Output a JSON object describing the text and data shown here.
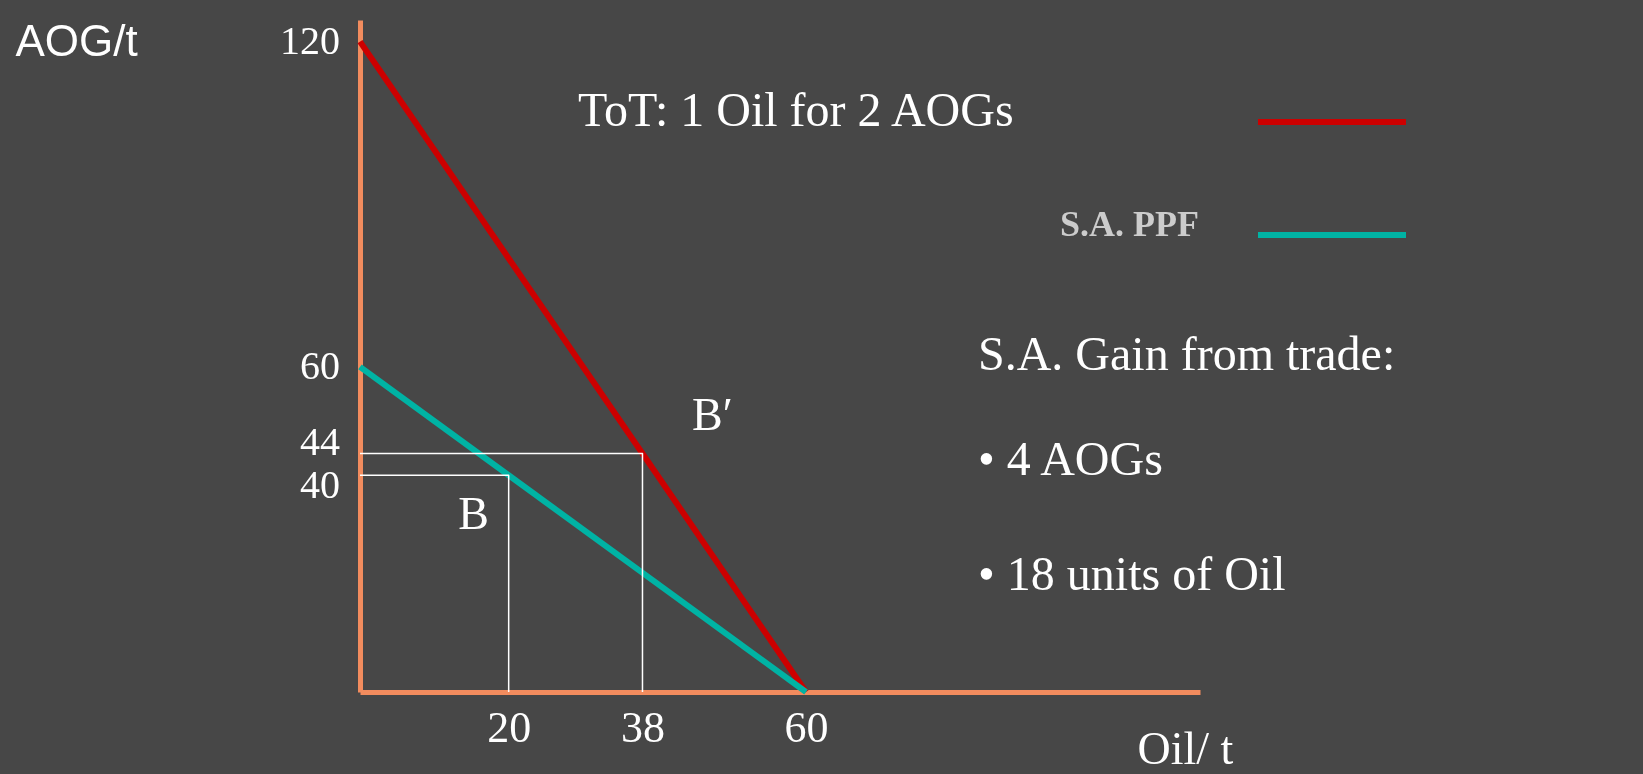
{
  "chart_data": {
    "type": "line",
    "xlabel": "Oil/ t",
    "ylabel": "AOG/t",
    "xlim": [
      0,
      113
    ],
    "ylim": [
      0,
      124
    ],
    "xticks": [
      20,
      38,
      60
    ],
    "yticks": [
      40,
      44,
      60,
      120
    ],
    "grid": false,
    "legend": "top right",
    "marker": "none",
    "line_style": "solid",
    "series": [
      {
        "name": "ToT: 1 Oil for 2 AOGs",
        "color": "#cc0000",
        "x": [
          0,
          60
        ],
        "values": [
          120,
          0
        ]
      },
      {
        "name": "S.A. PPF",
        "color": "#00b3a4",
        "x": [
          0,
          60
        ],
        "values": [
          60,
          0
        ]
      },
      {
        "color": "#ffffff",
        "x": [
          0,
          38,
          38
        ],
        "values": [
          44,
          44,
          0
        ]
      },
      {
        "color": "#ffffff",
        "x": [
          0,
          20,
          20
        ],
        "values": [
          40,
          40,
          0
        ]
      }
    ],
    "annotations": [
      {
        "text": "B",
        "x": 20,
        "y": 40
      },
      {
        "text": "B′",
        "x": 38,
        "y": 44
      },
      "S.A. Gain from trade:",
      "• 4 AOGs",
      "• 18 units of Oil"
    ]
  }
}
